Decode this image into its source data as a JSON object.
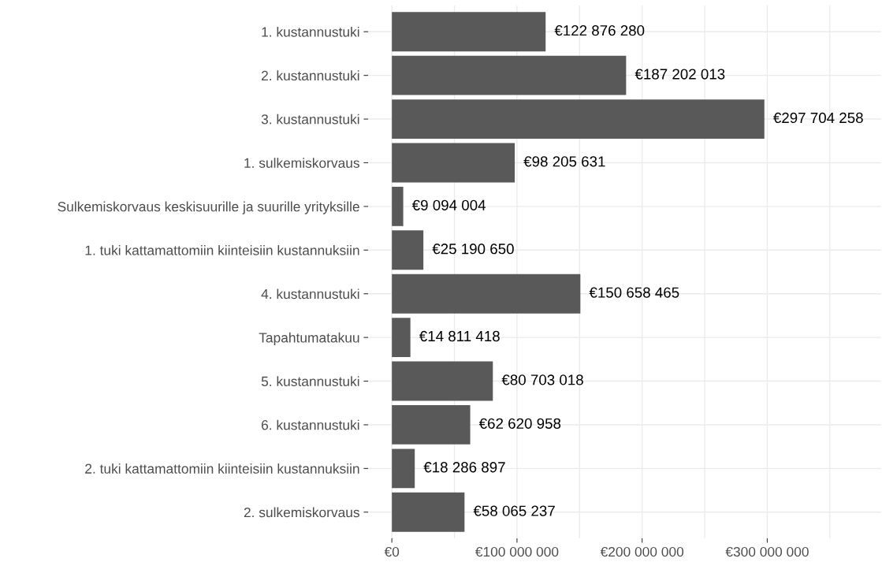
{
  "chart_data": {
    "type": "bar",
    "orientation": "horizontal",
    "categories": [
      "1. kustannustuki",
      "2. kustannustuki",
      "3. kustannustuki",
      "1. sulkemiskorvaus",
      "Sulkemiskorvaus keskisuurille ja suurille yrityksille",
      "1. tuki kattamattomiin kiinteisiin kustannuksiin",
      "4. kustannustuki",
      "Tapahtumatakuu",
      "5. kustannustuki",
      "6. kustannustuki",
      "2. tuki kattamattomiin kiinteisiin kustannuksiin",
      "2. sulkemiskorvaus"
    ],
    "values": [
      122876280,
      187202013,
      297704258,
      98205631,
      9094004,
      25190650,
      150658465,
      14811418,
      80703018,
      62620958,
      18286897,
      58065237
    ],
    "value_labels": [
      "€122 876 280",
      "€187 202 013",
      "€297 704 258",
      "€98 205 631",
      "€9 094 004",
      "€25 190 650",
      "€150 658 465",
      "€14 811 418",
      "€80 703 018",
      "€62 620 958",
      "€18 286 897",
      "€58 065 237"
    ],
    "color": "#595959",
    "xlim": [
      -19000000,
      391000000
    ],
    "xticks": [
      {
        "value": 0,
        "label": "€0"
      },
      {
        "value": 50000000,
        "label": null
      },
      {
        "value": 100000000,
        "label": "€100 000 000"
      },
      {
        "value": 150000000,
        "label": null
      },
      {
        "value": 200000000,
        "label": "€200 000 000"
      },
      {
        "value": 250000000,
        "label": null
      },
      {
        "value": 300000000,
        "label": "€300 000 000"
      },
      {
        "value": 350000000,
        "label": null
      }
    ],
    "grid": true
  }
}
